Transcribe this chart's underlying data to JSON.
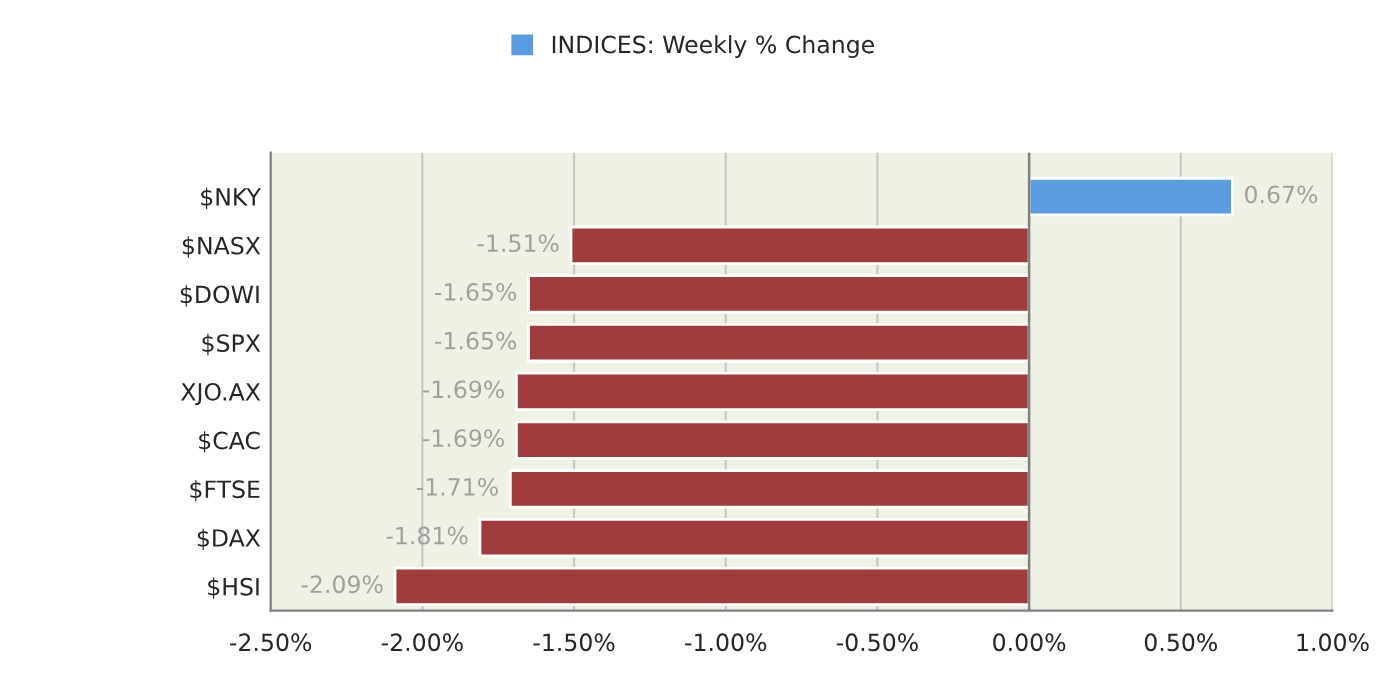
{
  "chart_data": {
    "type": "bar",
    "orientation": "horizontal",
    "categories": [
      "$NKY",
      "$NASX",
      "$DOWI",
      "$SPX",
      "XJO.AX",
      "$CAC",
      "$FTSE",
      "$DAX",
      "$HSI"
    ],
    "series": [
      {
        "name": "INDICES: Weekly % Change",
        "color": "#5b9be0",
        "colors": [
          "#5b9be0",
          "#a03c3c",
          "#a03c3c",
          "#a03c3c",
          "#a03c3c",
          "#a03c3c",
          "#a03c3c",
          "#a03c3c",
          "#a03c3c"
        ],
        "values": [
          0.67,
          -1.51,
          -1.65,
          -1.65,
          -1.69,
          -1.69,
          -1.71,
          -1.81,
          -2.09
        ],
        "value_labels": [
          "0.67%",
          "-1.51%",
          "-1.65%",
          "-1.65%",
          "-1.69%",
          "-1.69%",
          "-1.71%",
          "-1.81%",
          "-2.09%"
        ]
      }
    ],
    "xlim": [
      -2.5,
      1.0
    ],
    "xticks": [
      {
        "value": -2.5,
        "label": "-2.50%"
      },
      {
        "value": -2.0,
        "label": "-2.00%"
      },
      {
        "value": -1.5,
        "label": "-1.50%"
      },
      {
        "value": -1.0,
        "label": "-1.00%"
      },
      {
        "value": -0.5,
        "label": "-0.50%"
      },
      {
        "value": 0.0,
        "label": "0.00%"
      },
      {
        "value": 0.5,
        "label": "0.50%"
      },
      {
        "value": 1.0,
        "label": "1.00%"
      }
    ],
    "ref_lines": [
      {
        "axis": "x",
        "value": 0,
        "color": "#808080"
      }
    ],
    "grid": "x",
    "legend": "top"
  }
}
